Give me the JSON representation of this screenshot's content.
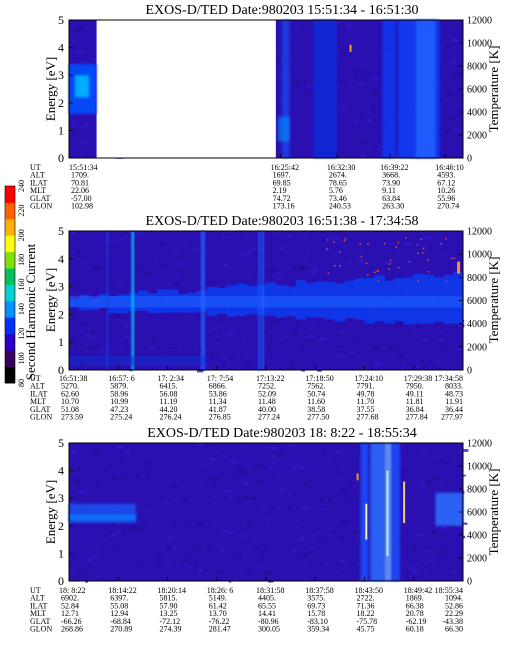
{
  "colorbar": {
    "label": "Second Harmonic Current",
    "ticks": [
      "80",
      "100",
      "120",
      "140",
      "160",
      "180",
      "200",
      "220",
      "240"
    ],
    "colors": [
      "#000000",
      "#3a0060",
      "#2a00c8",
      "#0030ff",
      "#0090ff",
      "#00d0d0",
      "#00c060",
      "#80e000",
      "#ffff00",
      "#ffb000",
      "#ff6000",
      "#ff0000"
    ]
  },
  "chart_data": [
    {
      "type": "heatmap",
      "title": "EXOS-D/TED   Date:980203   15:51:34 - 16:51:30",
      "ylabel": "Energy [eV]",
      "y2label": "Temperature [K]",
      "ylim": [
        0,
        5
      ],
      "y2lim": [
        0,
        12000
      ],
      "yticks": [
        "0",
        "1",
        "2",
        "3",
        "4",
        "5"
      ],
      "y2ticks": [
        "0",
        "2000",
        "4000",
        "6000",
        "8000",
        "10000",
        "12000"
      ],
      "orbit_labels": [
        "UT",
        "ALT",
        "ILAT",
        "MLT",
        "GLAT",
        "GLON"
      ],
      "orbit_columns": [
        {
          "time": "15:51:34",
          "values": [
            "1709.",
            "70.81",
            "22.06",
            "-57.00",
            "102.98"
          ]
        },
        {
          "time": "16:25:42",
          "values": [
            "1697.",
            "69.85",
            "2.19",
            "74.72",
            "173.16"
          ]
        },
        {
          "time": "16:32:30",
          "values": [
            "2674.",
            "78.65",
            "5.76",
            "73.46",
            "240.53"
          ]
        },
        {
          "time": "16:39:22",
          "values": [
            "3668.",
            "73.90",
            "9.11",
            "63.84",
            "263.30"
          ]
        },
        {
          "time": "16:46:10",
          "values": [
            "4593.",
            "67.12",
            "10.26",
            "55.96",
            "270.74"
          ]
        }
      ],
      "gap": [
        0.07,
        0.525
      ]
    },
    {
      "type": "heatmap",
      "title": "EXOS-D/TED   Date:980203   16:51:38 - 17:34:58",
      "ylabel": "Energy [eV]",
      "y2label": "Temperature [K]",
      "ylim": [
        0,
        5
      ],
      "y2lim": [
        0,
        12000
      ],
      "yticks": [
        "0",
        "1",
        "2",
        "3",
        "4",
        "5"
      ],
      "y2ticks": [
        "0",
        "2000",
        "4000",
        "6000",
        "8000",
        "10000",
        "12000"
      ],
      "orbit_labels": [
        "UT",
        "ALT",
        "ILAT",
        "MLT",
        "GLAT",
        "GLON"
      ],
      "orbit_columns": [
        {
          "time": "16:51:38",
          "values": [
            "5270.",
            "62.60",
            "10.70",
            "51.08",
            "273.59"
          ]
        },
        {
          "time": "16:57: 6",
          "values": [
            "5879.",
            "58.96",
            "10.99",
            "47.23",
            "275.24"
          ]
        },
        {
          "time": "17: 2:34",
          "values": [
            "6415.",
            "56.08",
            "11.19",
            "44.20",
            "276.24"
          ]
        },
        {
          "time": "17: 7:54",
          "values": [
            "6866.",
            "53.86",
            "11.34",
            "41.87",
            "276.85"
          ]
        },
        {
          "time": "17:13:22",
          "values": [
            "7252.",
            "52.09",
            "11.48",
            "40.00",
            "277.24"
          ]
        },
        {
          "time": "17:18:50",
          "values": [
            "7562.",
            "50.74",
            "11.60",
            "38.58",
            "277.50"
          ]
        },
        {
          "time": "17:24:10",
          "values": [
            "7791.",
            "49.78",
            "11.70",
            "37.55",
            "277.68"
          ]
        },
        {
          "time": "17:29:38",
          "values": [
            "7950.",
            "49.11",
            "11.81",
            "36.84",
            "277.84"
          ]
        },
        {
          "time": "17:34:58",
          "values": [
            "8033.",
            "48.73",
            "11.91",
            "36.44",
            "277.97"
          ]
        }
      ]
    },
    {
      "type": "heatmap",
      "title": "EXOS-D/TED   Date:980203   18: 8:22 - 18:55:34",
      "ylabel": "Energy [eV]",
      "y2label": "Temperature [K]",
      "ylim": [
        0,
        5
      ],
      "y2lim": [
        0,
        12000
      ],
      "yticks": [
        "0",
        "1",
        "2",
        "3",
        "4",
        "5"
      ],
      "y2ticks": [
        "0",
        "2000",
        "4000",
        "6000",
        "8000",
        "10000",
        "12000"
      ],
      "orbit_labels": [
        "UT",
        "ALT",
        "ILAT",
        "MLT",
        "GLAT",
        "GLON"
      ],
      "orbit_columns": [
        {
          "time": "18: 8:22",
          "values": [
            "6902.",
            "52.84",
            "12.71",
            "-66.26",
            "268.86"
          ]
        },
        {
          "time": "18:14:22",
          "values": [
            "6397.",
            "55.08",
            "12.94",
            "-68.84",
            "270.89"
          ]
        },
        {
          "time": "18:20:14",
          "values": [
            "5815.",
            "57.90",
            "13.25",
            "-72.12",
            "274.39"
          ]
        },
        {
          "time": "18:26: 6",
          "values": [
            "5149.",
            "61.42",
            "13.70",
            "-76.22",
            "281.47"
          ]
        },
        {
          "time": "18:31:58",
          "values": [
            "4405.",
            "65.55",
            "14.41",
            "-80.96",
            "300.05"
          ]
        },
        {
          "time": "18:37:58",
          "values": [
            "3575.",
            "69.73",
            "15.78",
            "-83.10",
            "359.34"
          ]
        },
        {
          "time": "18:43:50",
          "values": [
            "2722.",
            "71.36",
            "18.22",
            "-75.78",
            "45.75"
          ]
        },
        {
          "time": "18:49:42",
          "values": [
            "1869.",
            "66.38",
            "20.78",
            "-62.19",
            "60.18"
          ]
        },
        {
          "time": "18:55:34",
          "values": [
            "1094.",
            "52.86",
            "22.29",
            "-43.38",
            "66.30"
          ]
        }
      ]
    }
  ]
}
